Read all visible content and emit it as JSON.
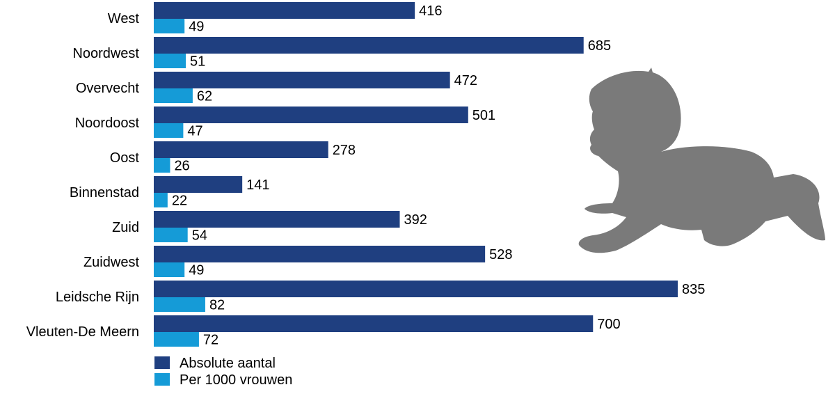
{
  "chart_data": {
    "type": "bar",
    "orientation": "horizontal",
    "categories": [
      "West",
      "Noordwest",
      "Overvecht",
      "Noordoost",
      "Oost",
      "Binnenstad",
      "Zuid",
      "Zuidwest",
      "Leidsche Rijn",
      "Vleuten-De Meern"
    ],
    "series": [
      {
        "name": "Absolute aantal",
        "color": "#1f3f80",
        "values": [
          416,
          685,
          472,
          501,
          278,
          141,
          392,
          528,
          835,
          700
        ]
      },
      {
        "name": "Per 1000 vrouwen",
        "color": "#159bd7",
        "values": [
          49,
          51,
          62,
          47,
          26,
          22,
          54,
          49,
          82,
          72
        ]
      }
    ],
    "xlim": [
      0,
      835
    ],
    "grid": false,
    "legend_position": "bottom-left",
    "data_labels": true
  },
  "decoration": {
    "illustration_icon": "crawling-baby-silhouette-icon",
    "illustration_color": "#7a7a7a"
  }
}
